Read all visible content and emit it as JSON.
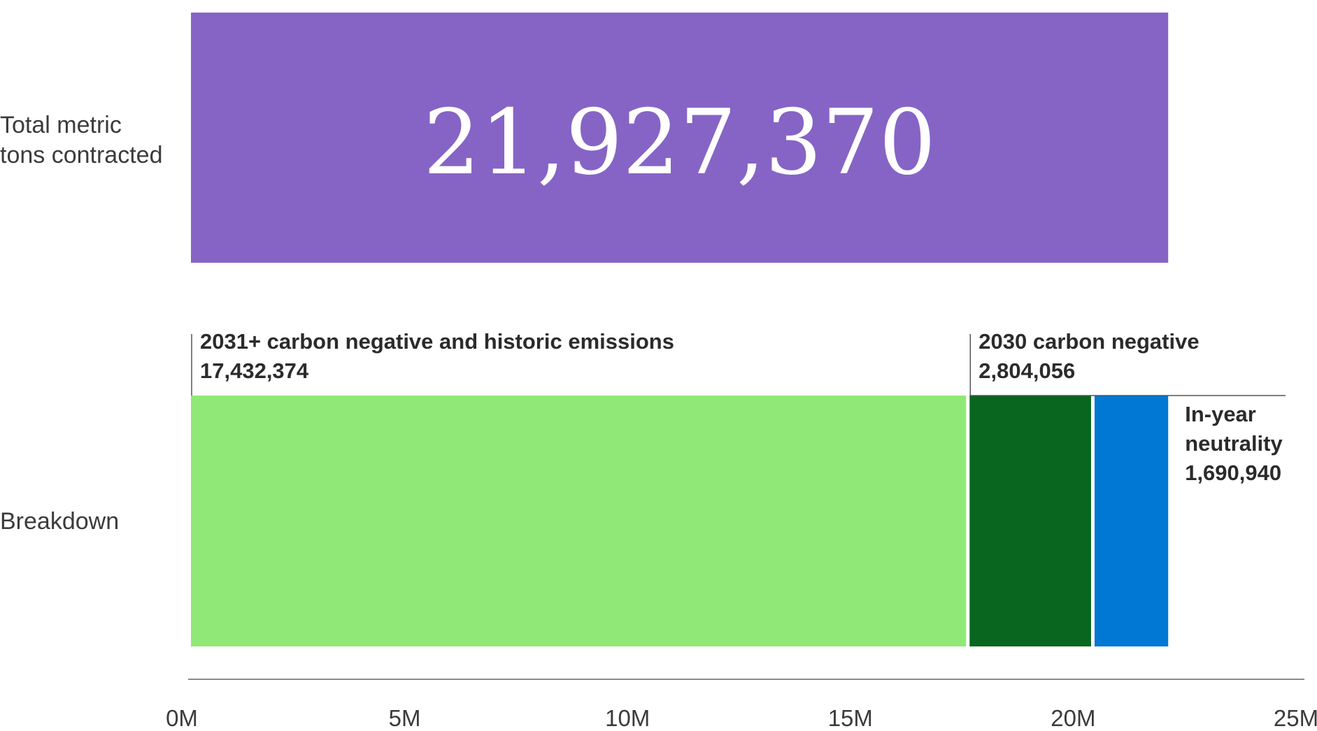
{
  "chart_data": {
    "type": "bar",
    "orientation": "horizontal",
    "xlim": [
      0,
      25000000
    ],
    "x_ticks": [
      0,
      5000000,
      10000000,
      15000000,
      20000000,
      25000000
    ],
    "x_tick_labels": [
      "0M",
      "5M",
      "10M",
      "15M",
      "20M",
      "25M"
    ],
    "grid": false,
    "rows": [
      {
        "label": "Total metric tons contracted",
        "label_lines": [
          "Total metric",
          "tons contracted"
        ],
        "segments": [
          {
            "name": "",
            "value": 21927370,
            "display": "21,927,370",
            "color": "#8664C6"
          }
        ]
      },
      {
        "label": "Breakdown",
        "label_lines": [
          "Breakdown"
        ],
        "segments": [
          {
            "name": "2031+ carbon negative and historic emissions",
            "name_lines": [
              "2031+ carbon negative and historic emissions"
            ],
            "value": 17432374,
            "display": "17,432,374",
            "color": "#90E977"
          },
          {
            "name": "2030 carbon negative",
            "name_lines": [
              "2030 carbon negative"
            ],
            "value": 2804056,
            "display": "2,804,056",
            "color": "#08661F"
          },
          {
            "name": "In-year neutrality",
            "name_lines": [
              "In-year",
              "neutrality"
            ],
            "value": 1690940,
            "display": "1,690,940",
            "color": "#0078D4"
          }
        ]
      }
    ]
  }
}
